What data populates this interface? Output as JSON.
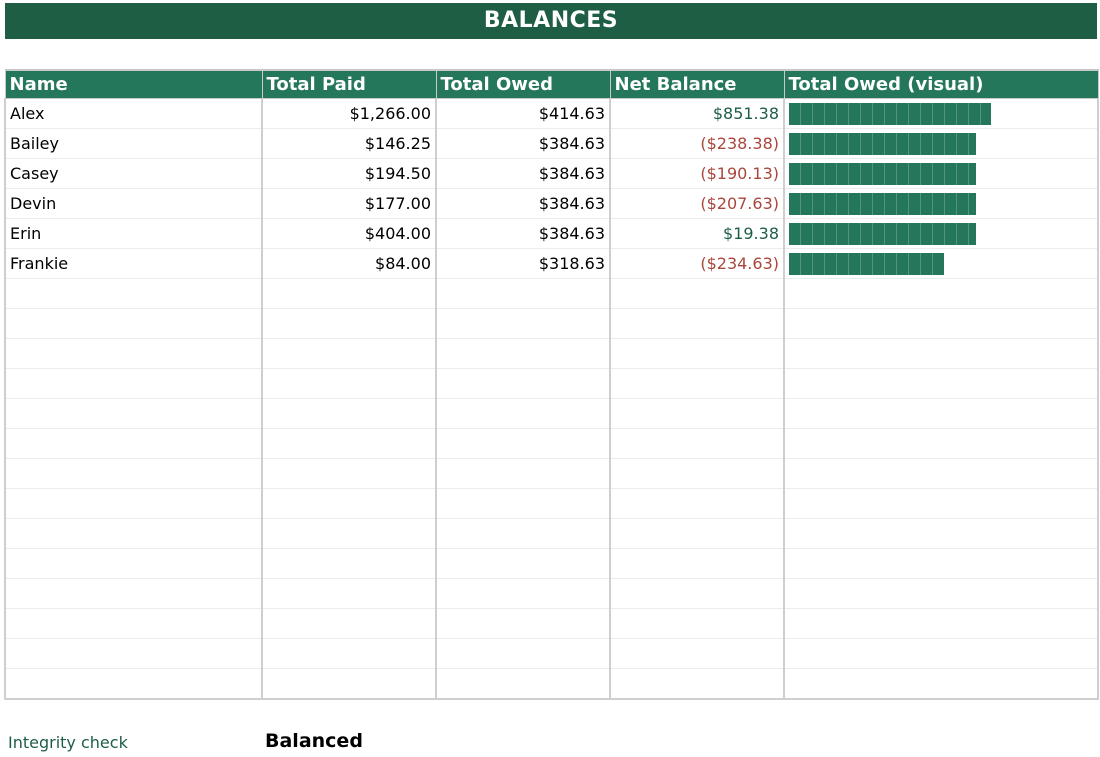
{
  "title": "BALANCES",
  "colors": {
    "title_bg": "#1e5e45",
    "header_bg": "#24775a",
    "positive": "#1e5e45",
    "negative": "#a9473c",
    "bar": "#24775a"
  },
  "table": {
    "headers": {
      "name": "Name",
      "total_paid": "Total Paid",
      "total_owed": "Total Owed",
      "net_balance": "Net Balance",
      "visual": "Total Owed (visual)"
    },
    "bar_max": 414.63,
    "rows": [
      {
        "name": "Alex",
        "total_paid": "$1,266.00",
        "total_owed": "$414.63",
        "net_balance": "$851.38",
        "owed_value": 414.63
      },
      {
        "name": "Bailey",
        "total_paid": "$146.25",
        "total_owed": "$384.63",
        "net_balance": "($238.38)",
        "owed_value": 384.63
      },
      {
        "name": "Casey",
        "total_paid": "$194.50",
        "total_owed": "$384.63",
        "net_balance": "($190.13)",
        "owed_value": 384.63
      },
      {
        "name": "Devin",
        "total_paid": "$177.00",
        "total_owed": "$384.63",
        "net_balance": "($207.63)",
        "owed_value": 384.63
      },
      {
        "name": "Erin",
        "total_paid": "$404.00",
        "total_owed": "$384.63",
        "net_balance": "$19.38",
        "owed_value": 384.63
      },
      {
        "name": "Frankie",
        "total_paid": "$84.00",
        "total_owed": "$318.63",
        "net_balance": "($234.63)",
        "owed_value": 318.63
      }
    ],
    "empty_row_count": 14
  },
  "integrity": {
    "label": "Integrity check",
    "value": "Balanced"
  }
}
